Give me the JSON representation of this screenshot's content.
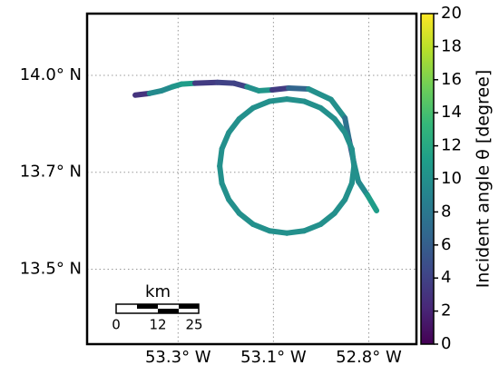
{
  "chart_data": {
    "type": "track-map",
    "xlim": [
      -53.49,
      -52.73
    ],
    "ylim": [
      13.35,
      14.1
    ],
    "xticks": [
      {
        "value": -53.28,
        "label": "53.3° W"
      },
      {
        "value": -53.06,
        "label": "53.1° W"
      },
      {
        "value": -52.84,
        "label": "52.8° W"
      }
    ],
    "yticks": [
      {
        "value": 13.52,
        "label": "13.5° N"
      },
      {
        "value": 13.74,
        "label": "13.7° N"
      },
      {
        "value": 13.96,
        "label": "14.0° N"
      }
    ],
    "grid": true,
    "colorbar": {
      "label": "Incident angle θ [degree]",
      "clim": [
        0,
        20
      ],
      "ticks": [
        0,
        2,
        4,
        6,
        8,
        10,
        12,
        14,
        16,
        18,
        20
      ],
      "colorscale": [
        "#440154",
        "#482878",
        "#3e4989",
        "#31688e",
        "#26828e",
        "#1f9e89",
        "#35b779",
        "#6ece58",
        "#b5de2b",
        "#fde725"
      ]
    },
    "scalebar": {
      "unit": "km",
      "labels": [
        "0",
        "12",
        "25"
      ]
    },
    "tracks": [
      {
        "lon": [
          -53.379,
          -53.346,
          -53.318,
          -53.293,
          -53.272,
          -53.241,
          -53.189,
          -53.151,
          -53.121,
          -53.094,
          -53.063,
          -53.025,
          -52.979,
          -52.927,
          -52.895,
          -52.885,
          -52.874,
          -52.864,
          -52.843,
          -52.822
        ],
        "lat": [
          13.915,
          13.919,
          13.925,
          13.934,
          13.94,
          13.942,
          13.944,
          13.942,
          13.934,
          13.925,
          13.927,
          13.931,
          13.929,
          13.905,
          13.863,
          13.812,
          13.76,
          13.719,
          13.688,
          13.653
        ],
        "angle": [
          3,
          3,
          16,
          3,
          18,
          4,
          3,
          5,
          3,
          17,
          4,
          3,
          10,
          10,
          10,
          5,
          4,
          16,
          3,
          19
        ]
      },
      {
        "lon": [
          -52.874,
          -52.879,
          -52.895,
          -52.919,
          -52.951,
          -52.989,
          -53.029,
          -53.069,
          -53.107,
          -53.139,
          -53.163,
          -53.179,
          -53.184,
          -53.179,
          -53.163,
          -53.139,
          -53.107,
          -53.069,
          -53.029,
          -52.989,
          -52.951,
          -52.919,
          -52.895,
          -52.879,
          -52.874
        ],
        "lat": [
          13.754,
          13.793,
          13.83,
          13.861,
          13.886,
          13.901,
          13.906,
          13.901,
          13.886,
          13.861,
          13.83,
          13.793,
          13.754,
          13.715,
          13.678,
          13.647,
          13.622,
          13.607,
          13.602,
          13.607,
          13.622,
          13.647,
          13.678,
          13.715,
          13.754
        ],
        "angle": [
          10,
          10,
          10,
          10,
          10,
          10,
          10,
          10,
          10,
          10,
          10,
          10,
          10,
          10,
          10,
          10,
          10,
          10,
          10,
          10,
          10,
          10,
          10,
          10,
          10
        ]
      }
    ]
  }
}
